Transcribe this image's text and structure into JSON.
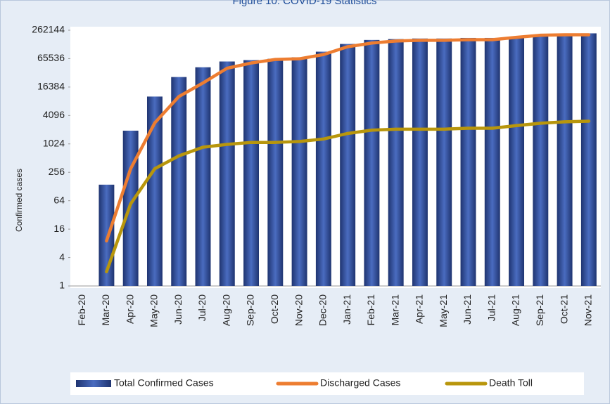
{
  "chart_data": {
    "type": "bar-line",
    "title": "Figure 10: COVID-19 Statistics",
    "y_axis_label": "Confirmed cases",
    "categories": [
      "Feb-20",
      "Mar-20",
      "Apr-20",
      "May-20",
      "Jun-20",
      "Jul-20",
      "Aug-20",
      "Sep-20",
      "Oct-20",
      "Nov-20",
      "Dec-20",
      "Jan-21",
      "Feb-21",
      "Mar-21",
      "Apr-21",
      "May-21",
      "Jun-21",
      "Jul-21",
      "Aug-21",
      "Sep-21",
      "Oct-21",
      "Nov-21"
    ],
    "series": [
      {
        "name": "Total Confirmed Cases",
        "type": "bar",
        "color": "#2f4f9a",
        "values": [
          null,
          140,
          1950,
          10300,
          26700,
          43000,
          57000,
          61000,
          65000,
          70000,
          92000,
          134000,
          163000,
          170000,
          175000,
          175000,
          180000,
          180000,
          190000,
          200000,
          215000,
          225000
        ]
      },
      {
        "name": "Discharged Cases",
        "type": "line",
        "color": "#ed7d31",
        "values": [
          null,
          9,
          305,
          2850,
          10300,
          20000,
          41000,
          53000,
          63000,
          65000,
          80000,
          117000,
          140000,
          155000,
          160000,
          160000,
          165000,
          165000,
          185000,
          205000,
          210000,
          210000
        ]
      },
      {
        "name": "Death Toll",
        "type": "line",
        "color": "#b8960c",
        "values": [
          null,
          2,
          55,
          305,
          570,
          870,
          1000,
          1100,
          1100,
          1150,
          1300,
          1700,
          2000,
          2100,
          2100,
          2100,
          2200,
          2200,
          2500,
          2800,
          3000,
          3100
        ]
      }
    ],
    "log_scale": true,
    "ylim": [
      1,
      262144
    ],
    "yticks": [
      1,
      4,
      16,
      64,
      256,
      1024,
      4096,
      16384,
      65536,
      262144
    ],
    "grid": false,
    "legend": "bottom"
  }
}
